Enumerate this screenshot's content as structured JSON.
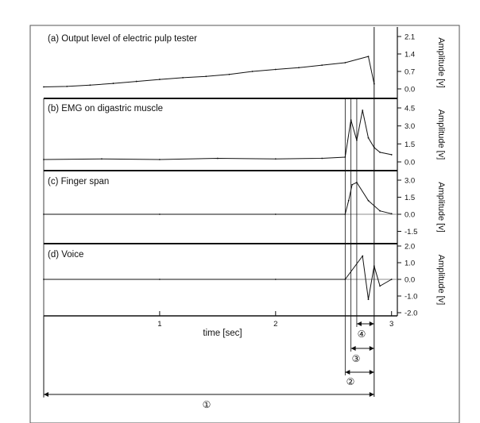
{
  "chart_data": [
    {
      "type": "line",
      "panel": "a",
      "title": "(a) Output level of electric pulp tester",
      "ylabel": "Amplitude [v]",
      "yticks": [
        "2.1",
        "1.4",
        "0.7",
        "0.0"
      ],
      "ylim": [
        0,
        2.1
      ],
      "x": [
        0,
        0.2,
        0.4,
        0.6,
        0.8,
        1.0,
        1.2,
        1.4,
        1.6,
        1.8,
        2.0,
        2.2,
        2.4,
        2.6,
        2.8,
        2.85
      ],
      "values": [
        0.08,
        0.1,
        0.15,
        0.22,
        0.3,
        0.38,
        0.45,
        0.5,
        0.58,
        0.7,
        0.78,
        0.85,
        0.95,
        1.05,
        1.3,
        0.2
      ]
    },
    {
      "type": "line",
      "panel": "b",
      "title": "(b) EMG on digastric muscle",
      "ylabel": "Amplitude [v]",
      "yticks": [
        "4.5",
        "3.0",
        "1.5",
        "0.0"
      ],
      "ylim": [
        0,
        4.5
      ],
      "x": [
        0,
        0.5,
        1.0,
        1.5,
        2.0,
        2.4,
        2.6,
        2.65,
        2.7,
        2.75,
        2.8,
        2.85,
        2.9,
        3.0
      ],
      "values": [
        0.2,
        0.25,
        0.2,
        0.3,
        0.25,
        0.3,
        0.4,
        3.5,
        1.8,
        4.3,
        2.0,
        1.2,
        0.8,
        0.6
      ]
    },
    {
      "type": "line",
      "panel": "c",
      "title": "(c) Finger span",
      "ylabel": "Amplitude [v]",
      "yticks": [
        "3.0",
        "1.5",
        "0.0",
        "-1.5"
      ],
      "ylim": [
        -1.5,
        3.0
      ],
      "x": [
        0,
        1.0,
        2.0,
        2.6,
        2.63,
        2.66,
        2.7,
        2.8,
        2.9,
        3.0
      ],
      "values": [
        0.0,
        0.0,
        0.0,
        0.0,
        1.2,
        2.6,
        2.8,
        1.2,
        0.3,
        0.05
      ]
    },
    {
      "type": "line",
      "panel": "d",
      "title": "(d) Voice",
      "ylabel": "Amplitude [v]",
      "yticks": [
        "2.0",
        "1.0",
        "0.0",
        "-1.0",
        "-2.0"
      ],
      "ylim": [
        -2.0,
        2.0
      ],
      "x": [
        0,
        1.0,
        2.0,
        2.6,
        2.75,
        2.8,
        2.85,
        2.9,
        3.0
      ],
      "values": [
        0.0,
        0.0,
        0.0,
        0.0,
        1.4,
        -1.2,
        0.8,
        -0.4,
        0.0
      ]
    }
  ],
  "xaxis": {
    "label": "time [sec]",
    "ticks": [
      "1",
      "2",
      "3"
    ],
    "xlim": [
      0,
      3.05
    ]
  },
  "intervals": [
    {
      "marker": "①",
      "start": 0,
      "end": 2.85
    },
    {
      "marker": "②",
      "start": 2.6,
      "end": 2.85
    },
    {
      "marker": "③",
      "start": 2.65,
      "end": 2.85
    },
    {
      "marker": "④",
      "start": 2.7,
      "end": 2.85
    }
  ]
}
